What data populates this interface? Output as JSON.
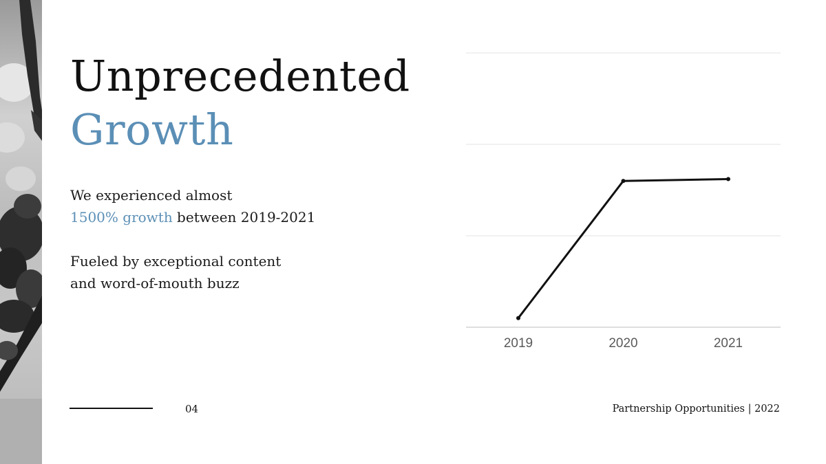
{
  "title": {
    "line1": "Unprecedented",
    "line2": "Growth"
  },
  "body": {
    "p1_line1": "We experienced almost",
    "p1_highlight": "1500% growth",
    "p1_rest": " between 2019-2021",
    "p2_line1": "Fueled by exceptional content",
    "p2_line2": "and word-of-mouth buzz"
  },
  "footer": {
    "page_number": "04",
    "right_text": "Partnership Opportunities | 2022"
  },
  "colors": {
    "accent": "#5b8fb6",
    "line": "#111111",
    "grid": "#e3e3e3"
  },
  "chart_data": {
    "type": "line",
    "categories": [
      "2019",
      "2020",
      "2021"
    ],
    "series": [
      {
        "values": [
          1,
          16,
          16.2
        ]
      }
    ],
    "title": "",
    "xlabel": "",
    "ylabel": "",
    "ylim": [
      0,
      30
    ],
    "grid": true,
    "legend": "none"
  }
}
